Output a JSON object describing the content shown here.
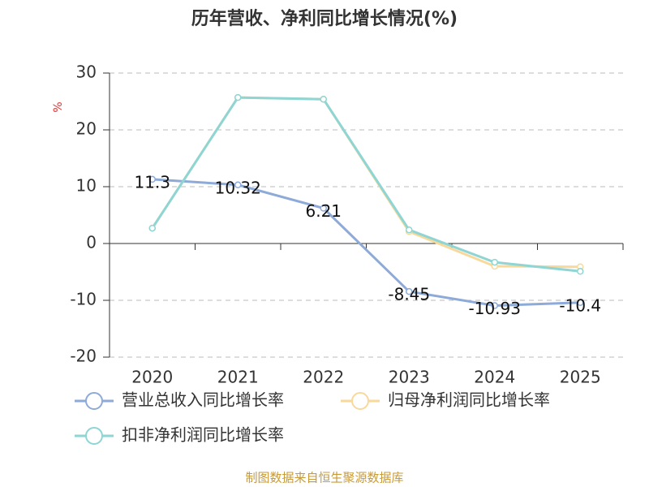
{
  "chart_data": {
    "type": "line",
    "title": "历年营收、净利同比增长情况(%)",
    "y_label": "%",
    "categories": [
      "2020",
      "2021",
      "2022",
      "2023",
      "2024",
      "2025"
    ],
    "series": [
      {
        "name": "营业总收入同比增长率",
        "color": "#8eaad8",
        "values": [
          11.3,
          10.32,
          6.21,
          -8.45,
          -10.93,
          -10.4
        ],
        "labels": true
      },
      {
        "name": "归母净利润同比增长率",
        "color": "#f8d99b",
        "values": [
          2.7,
          25.7,
          25.4,
          2.1,
          -4.0,
          -4.1
        ]
      },
      {
        "name": "扣非净利润同比增长率",
        "color": "#8ed5d3",
        "values": [
          2.7,
          25.7,
          25.4,
          2.4,
          -3.3,
          -4.9
        ]
      }
    ],
    "ylim": [
      -20,
      30
    ],
    "yticks": [
      -20,
      -10,
      0,
      10,
      20,
      30
    ],
    "grid": true,
    "source": "制图数据来自恒生聚源数据库"
  }
}
